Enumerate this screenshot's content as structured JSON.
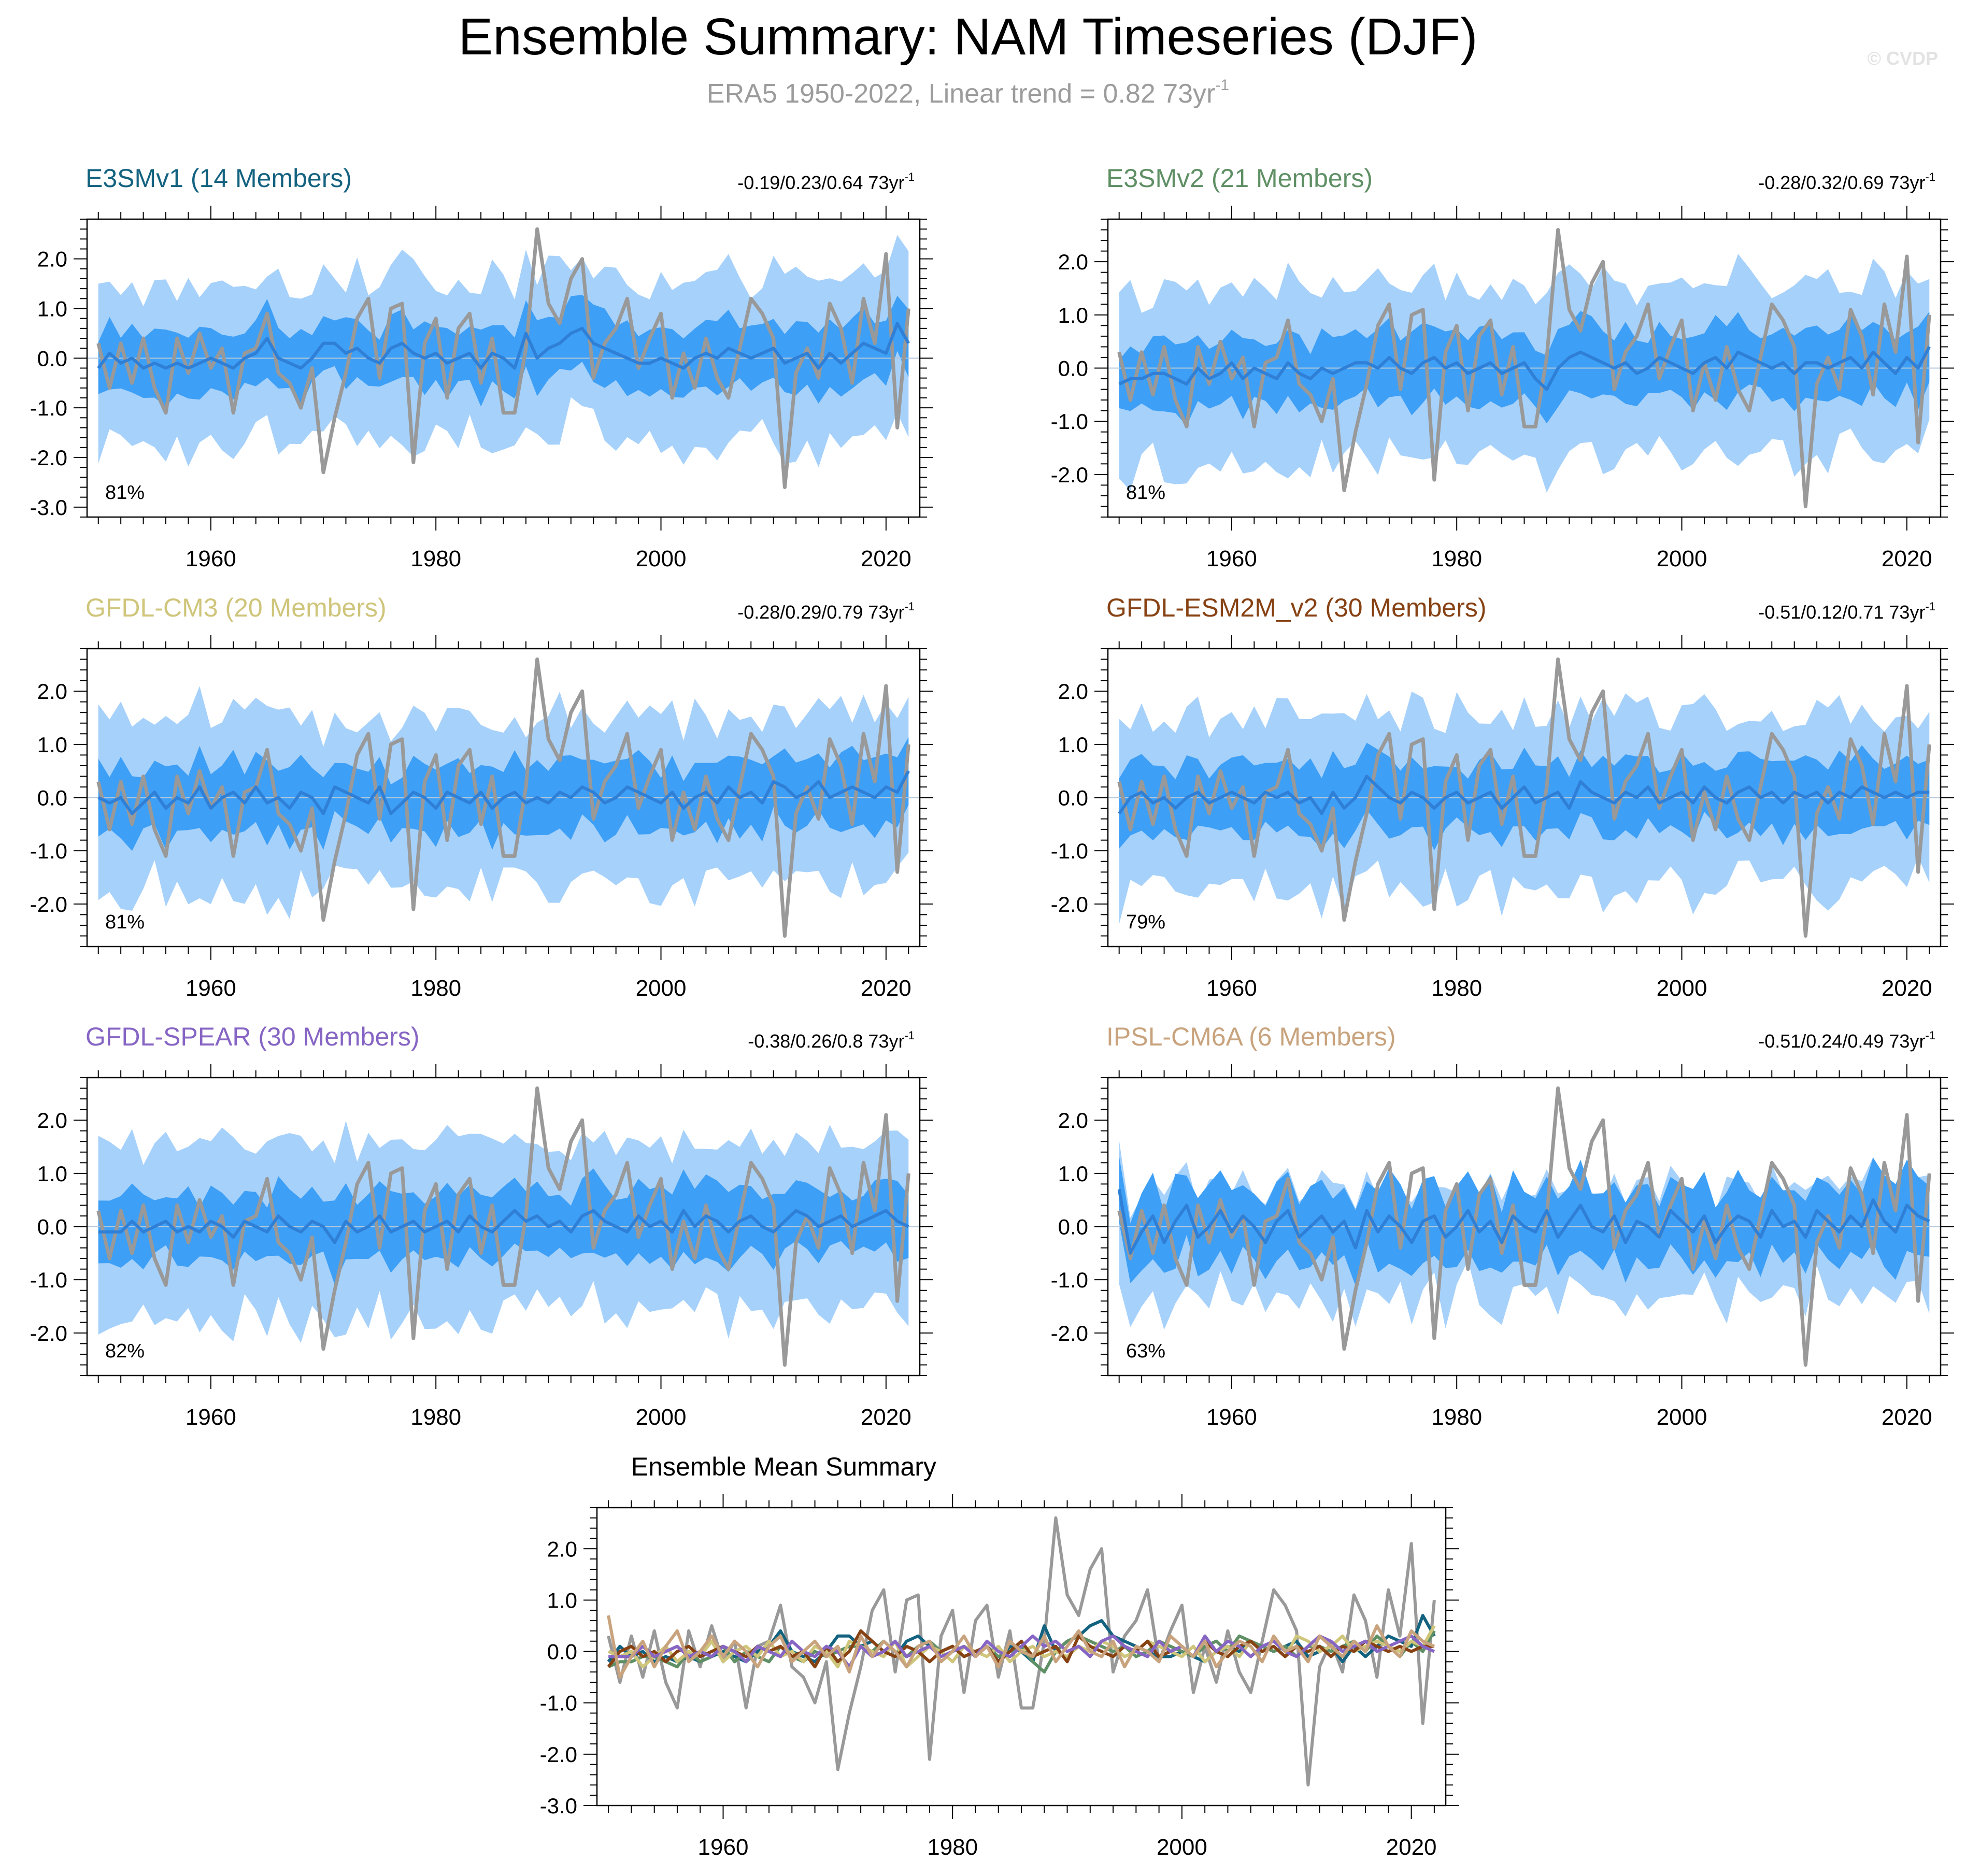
{
  "figure": {
    "title": "Ensemble Summary: NAM Timeseries (DJF)",
    "subtitle_main": "ERA5 1950-2022, Linear trend = 0.82 73yr",
    "subtitle_sup": "-1",
    "watermark": "© CVDP"
  },
  "colors": {
    "outer_band": "#a6d1fb",
    "inner_band": "#3d9ff5",
    "ens_mean_line": "#2f7fd6",
    "obs_line": "#999999",
    "zero_line": "#b4c8dc"
  },
  "chart_data": [
    {
      "type": "line",
      "title": "E3SMv1 (14 Members)",
      "title_color": "#13627f",
      "trend_text": "-0.19/0.23/0.64 73yr",
      "trend_sup": "-1",
      "percent_label": "81%",
      "xlim": [
        1949,
        2023
      ],
      "ylim": [
        -3.2,
        2.8
      ],
      "yticks": [
        "2.0",
        "1.0",
        "0.0",
        "-1.0",
        "-2.0",
        "-3.0"
      ],
      "xticks": [
        "1960",
        "1980",
        "2000",
        "2020"
      ],
      "series": [
        {
          "name": "",
          "values": [
            -0.2,
            0.1,
            -0.1,
            0.0,
            -0.2,
            -0.1,
            -0.2,
            -0.1,
            -0.2,
            -0.1,
            0.0,
            -0.1,
            -0.2,
            0.0,
            0.1,
            0.4,
            0.0,
            -0.1,
            -0.2,
            0.0,
            0.3,
            0.3,
            0.1,
            0.2,
            0.0,
            -0.1,
            0.2,
            0.3,
            0.1,
            0.0,
            0.1,
            -0.1,
            0.0,
            0.1,
            -0.2,
            0.1,
            0.0,
            -0.2,
            0.5,
            0.0,
            0.2,
            0.3,
            0.5,
            0.6,
            0.3,
            0.2,
            0.1,
            0.0,
            -0.1,
            -0.1,
            0.0,
            -0.1,
            -0.2,
            0.0,
            0.1,
            0.0,
            0.2,
            0.1,
            0.0,
            0.1,
            0.2,
            -0.1,
            0.0,
            0.1,
            -0.2,
            0.1,
            -0.1,
            0.1,
            0.3,
            0.2,
            0.1,
            0.7,
            0.3
          ]
        }
      ]
    },
    {
      "type": "line",
      "title": "E3SMv2 (21 Members)",
      "title_color": "#5f8f64",
      "trend_text": "-0.28/0.32/0.69 73yr",
      "trend_sup": "-1",
      "percent_label": "81%",
      "xlim": [
        1949,
        2023
      ],
      "ylim": [
        -2.8,
        2.8
      ],
      "yticks": [
        "2.0",
        "1.0",
        "0.0",
        "-1.0",
        "-2.0"
      ],
      "xticks": [
        "1960",
        "1980",
        "2000",
        "2020"
      ],
      "series": [
        {
          "name": "",
          "values": [
            -0.3,
            -0.2,
            -0.2,
            -0.1,
            -0.1,
            -0.2,
            -0.3,
            0.0,
            -0.2,
            -0.1,
            0.1,
            -0.2,
            0.0,
            -0.1,
            -0.2,
            0.1,
            -0.1,
            -0.2,
            0.0,
            -0.1,
            0.0,
            0.1,
            0.1,
            0.0,
            0.2,
            0.0,
            -0.1,
            0.1,
            0.2,
            0.0,
            0.1,
            -0.1,
            0.0,
            0.1,
            -0.1,
            0.0,
            0.1,
            -0.2,
            -0.4,
            0.0,
            0.2,
            0.3,
            0.2,
            0.1,
            0.0,
            0.1,
            -0.1,
            0.0,
            0.2,
            0.1,
            0.0,
            -0.1,
            0.1,
            0.2,
            0.0,
            0.3,
            0.2,
            0.1,
            0.0,
            0.1,
            -0.1,
            0.1,
            0.1,
            0.0,
            0.1,
            0.2,
            0.0,
            0.3,
            0.1,
            -0.1,
            0.2,
            0.0,
            0.4
          ]
        }
      ]
    },
    {
      "type": "line",
      "title": "GFDL-CM3 (20 Members)",
      "title_color": "#cfc57b",
      "trend_text": "-0.28/0.29/0.79 73yr",
      "trend_sup": "-1",
      "percent_label": "81%",
      "xlim": [
        1949,
        2023
      ],
      "ylim": [
        -2.8,
        2.8
      ],
      "yticks": [
        "2.0",
        "1.0",
        "0.0",
        "-1.0",
        "-2.0"
      ],
      "xticks": [
        "1960",
        "1980",
        "2000",
        "2020"
      ],
      "series": [
        {
          "name": "",
          "values": [
            0.0,
            -0.1,
            0.0,
            -0.3,
            -0.1,
            0.1,
            -0.2,
            0.0,
            -0.1,
            0.2,
            -0.2,
            0.0,
            0.1,
            -0.1,
            0.2,
            -0.1,
            0.0,
            -0.2,
            0.1,
            0.0,
            -0.3,
            0.2,
            0.1,
            0.0,
            -0.1,
            0.2,
            -0.3,
            -0.1,
            0.1,
            0.0,
            -0.2,
            0.1,
            0.0,
            -0.1,
            0.1,
            -0.2,
            0.0,
            0.1,
            -0.1,
            0.0,
            -0.1,
            0.1,
            0.0,
            0.2,
            0.1,
            -0.1,
            0.0,
            0.2,
            0.1,
            0.0,
            -0.1,
            0.1,
            -0.2,
            0.0,
            0.1,
            -0.1,
            0.2,
            0.0,
            0.1,
            -0.1,
            0.3,
            0.2,
            0.0,
            0.1,
            0.3,
            0.0,
            0.1,
            0.2,
            0.1,
            0.0,
            0.2,
            0.1,
            0.5
          ]
        }
      ]
    },
    {
      "type": "line",
      "title": "GFDL-ESM2M_v2 (30 Members)",
      "title_color": "#874214",
      "trend_text": "-0.51/0.12/0.71 73yr",
      "trend_sup": "-1",
      "percent_label": "79%",
      "xlim": [
        1949,
        2023
      ],
      "ylim": [
        -2.8,
        2.8
      ],
      "yticks": [
        "2.0",
        "1.0",
        "0.0",
        "-1.0",
        "-2.0"
      ],
      "xticks": [
        "1960",
        "1980",
        "2000",
        "2020"
      ],
      "series": [
        {
          "name": "",
          "values": [
            -0.3,
            0.0,
            0.1,
            -0.1,
            0.0,
            -0.2,
            0.0,
            0.1,
            -0.1,
            0.0,
            0.1,
            0.0,
            -0.1,
            0.1,
            0.0,
            0.1,
            -0.1,
            0.0,
            -0.3,
            0.1,
            -0.2,
            0.0,
            0.4,
            0.2,
            0.0,
            -0.1,
            0.1,
            0.0,
            -0.2,
            0.0,
            0.1,
            -0.1,
            0.0,
            0.1,
            -0.2,
            0.0,
            0.2,
            -0.1,
            0.0,
            0.1,
            -0.2,
            0.3,
            0.1,
            0.0,
            -0.1,
            0.1,
            0.0,
            0.2,
            -0.1,
            0.0,
            0.1,
            -0.1,
            0.2,
            0.0,
            -0.1,
            0.1,
            0.2,
            0.0,
            0.1,
            -0.1,
            0.1,
            0.0,
            0.1,
            -0.1,
            0.1,
            0.0,
            0.2,
            0.1,
            0.0,
            0.1,
            0.0,
            0.1,
            0.1
          ]
        }
      ]
    },
    {
      "type": "line",
      "title": "GFDL-SPEAR (30 Members)",
      "title_color": "#8665c4",
      "trend_text": "-0.38/0.26/0.8 73yr",
      "trend_sup": "-1",
      "percent_label": "82%",
      "xlim": [
        1949,
        2023
      ],
      "ylim": [
        -2.8,
        2.8
      ],
      "yticks": [
        "2.0",
        "1.0",
        "0.0",
        "-1.0",
        "-2.0"
      ],
      "xticks": [
        "1960",
        "1980",
        "2000",
        "2020"
      ],
      "series": [
        {
          "name": "",
          "values": [
            -0.1,
            -0.1,
            -0.1,
            0.1,
            -0.1,
            0.0,
            0.1,
            -0.1,
            0.0,
            -0.1,
            0.1,
            0.0,
            -0.2,
            0.1,
            0.0,
            -0.1,
            0.2,
            0.0,
            -0.1,
            0.1,
            0.0,
            -0.3,
            0.1,
            -0.1,
            0.0,
            0.2,
            -0.1,
            0.0,
            0.1,
            -0.1,
            0.0,
            0.1,
            -0.1,
            0.2,
            0.0,
            -0.1,
            0.1,
            0.3,
            0.1,
            0.2,
            0.0,
            0.1,
            -0.1,
            0.2,
            0.3,
            0.1,
            0.0,
            -0.1,
            0.2,
            0.0,
            0.1,
            -0.1,
            0.3,
            0.0,
            0.2,
            0.1,
            -0.1,
            0.1,
            0.2,
            0.0,
            -0.1,
            0.1,
            0.3,
            0.2,
            0.0,
            0.1,
            0.2,
            0.0,
            0.1,
            0.2,
            0.3,
            0.1,
            0.0
          ]
        }
      ]
    },
    {
      "type": "line",
      "title": "IPSL-CM6A (6 Members)",
      "title_color": "#c8a37d",
      "trend_text": "-0.51/0.24/0.49 73yr",
      "trend_sup": "-1",
      "percent_label": "63%",
      "xlim": [
        1949,
        2023
      ],
      "ylim": [
        -2.8,
        2.8
      ],
      "yticks": [
        "2.0",
        "1.0",
        "0.0",
        "-1.0",
        "-2.0"
      ],
      "xticks": [
        "1960",
        "1980",
        "2000",
        "2020"
      ],
      "series": [
        {
          "name": "",
          "values": [
            0.7,
            -0.5,
            -0.1,
            0.2,
            -0.3,
            0.1,
            0.4,
            -0.2,
            0.0,
            0.3,
            -0.1,
            0.2,
            0.0,
            -0.3,
            0.1,
            0.3,
            -0.2,
            0.0,
            0.2,
            -0.1,
            0.1,
            -0.4,
            0.3,
            -0.1,
            0.2,
            0.0,
            -0.3,
            0.1,
            0.2,
            -0.2,
            0.0,
            0.3,
            -0.1,
            0.1,
            -0.3,
            0.2,
            0.0,
            -0.1,
            0.3,
            -0.2,
            0.1,
            0.4,
            0.0,
            -0.1,
            0.2,
            -0.3,
            0.1,
            0.0,
            -0.2,
            0.3,
            0.1,
            -0.1,
            0.2,
            -0.3,
            0.0,
            0.2,
            0.1,
            -0.2,
            0.3,
            0.0,
            0.1,
            -0.2,
            0.3,
            0.1,
            -0.1,
            0.2,
            0.0,
            0.5,
            0.1,
            -0.1,
            0.4,
            0.2,
            0.1
          ]
        }
      ]
    },
    {
      "type": "line",
      "title": "Ensemble Mean Summary",
      "title_color": "#000000",
      "xlim": [
        1949,
        2023
      ],
      "ylim": [
        -3.0,
        2.8
      ],
      "yticks": [
        "2.0",
        "1.0",
        "0.0",
        "-1.0",
        "-2.0",
        "-3.0"
      ],
      "xticks": [
        "1960",
        "1980",
        "2000",
        "2020"
      ],
      "series": []
    }
  ]
}
